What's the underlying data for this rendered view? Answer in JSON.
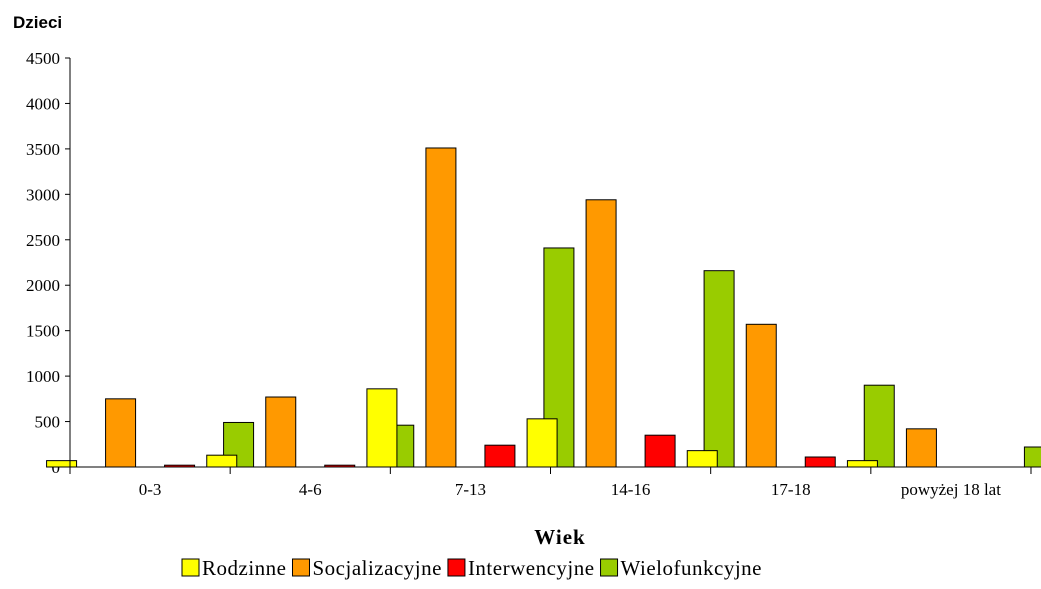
{
  "chart_data": {
    "type": "bar",
    "ylabel": "Dzieci",
    "xlabel": "Wiek",
    "ylim": [
      0,
      4500
    ],
    "yticks": [
      0,
      500,
      1000,
      1500,
      2000,
      2500,
      3000,
      3500,
      4000,
      4500
    ],
    "categories": [
      "0-3",
      "4-6",
      "7-13",
      "14-16",
      "17-18",
      "powyżej 18 lat"
    ],
    "series": [
      {
        "name": "Rodzinne",
        "color": "#ffff00",
        "values": [
          70,
          130,
          860,
          530,
          180,
          70
        ]
      },
      {
        "name": "Socjalizacyjne",
        "color": "#ff9900",
        "values": [
          750,
          770,
          3510,
          2940,
          1570,
          420
        ]
      },
      {
        "name": "Interwencyjne",
        "color": "#ff0000",
        "values": [
          20,
          20,
          240,
          350,
          110,
          0
        ]
      },
      {
        "name": "Wielofunkcyjne",
        "color": "#99cc00",
        "values": [
          490,
          460,
          2410,
          2160,
          900,
          220
        ]
      }
    ],
    "grid": false,
    "legend": "bottom"
  }
}
